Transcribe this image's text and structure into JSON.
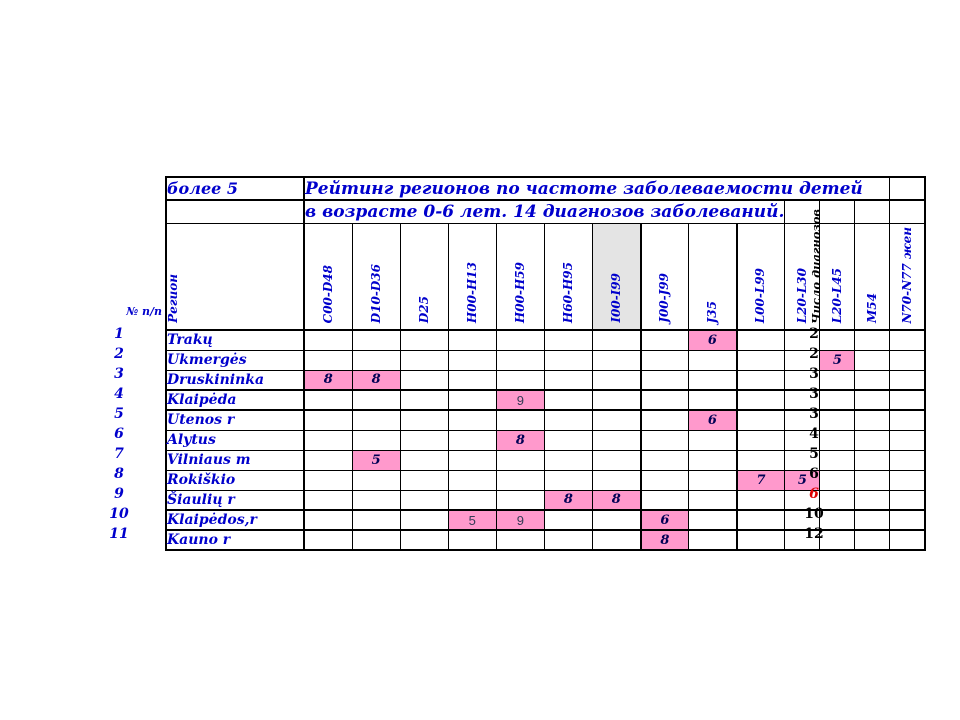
{
  "page": {
    "background": "#ffffff"
  },
  "colors": {
    "grid": "#000000",
    "blue_text": "#0000CC",
    "pink_fill": "#FF99CC",
    "gray_fill": "#E4E4E4",
    "red_text": "#DD0000",
    "value_text": "#000055"
  },
  "header": {
    "threshold_label": "более 5",
    "title_line1": "Рейтинг регионов по частоте заболеваемости детей",
    "title_line2": "в возрасте 0-6 лет. 14 диагнозов заболеваний.",
    "region_column_label": "Регион",
    "row_number_label": "№ п/п",
    "totals_label": "Число диагнозов",
    "code_columns": [
      "C00-D48",
      "D10-D36",
      "D25",
      "H00-H13",
      "H00-H59",
      "H60-H95",
      "I00-I99",
      "J00-J99",
      "J35",
      "L00-L99",
      "L20-L30",
      "L20-L45",
      "M54",
      "N70-N77 жен"
    ],
    "highlighted_code_column": "I00-I99"
  },
  "chart_data": {
    "type": "table",
    "title": "Рейтинг регионов по частоте заболеваемости детей в возрасте 0-6 лет. 14 диагнозов заболеваний.",
    "threshold_note": "более 5",
    "columns": [
      "№ п/п",
      "Регион",
      "C00-D48",
      "D10-D36",
      "D25",
      "H00-H13",
      "H00-H59",
      "H60-H95",
      "I00-I99",
      "J00-J99",
      "J35",
      "L00-L99",
      "L20-L30",
      "L20-L45",
      "M54",
      "N70-N77 жен",
      "Число диагнозов"
    ],
    "rows": [
      {
        "num": "1",
        "region": "Trakų",
        "total": "2",
        "cells": [
          {
            "code": "J35",
            "value": "6"
          }
        ]
      },
      {
        "num": "2",
        "region": "Ukmergės",
        "total": "2",
        "cells": [
          {
            "code": "L20-L45",
            "value": "5"
          }
        ]
      },
      {
        "num": "3",
        "region": "Druskininka",
        "total": "3",
        "cells": [
          {
            "code": "C00-D48",
            "value": "8"
          },
          {
            "code": "D10-D36",
            "value": "8"
          }
        ]
      },
      {
        "num": "4",
        "region": "Klaipėda",
        "total": "3",
        "cells": [
          {
            "code": "H00-H59",
            "value": "9",
            "plain": true
          }
        ]
      },
      {
        "num": "5",
        "region": "Utenos r",
        "total": "3",
        "cells": [
          {
            "code": "J35",
            "value": "6"
          }
        ]
      },
      {
        "num": "6",
        "region": "Alytus",
        "total": "4",
        "cells": [
          {
            "code": "H00-H59",
            "value": "8"
          }
        ]
      },
      {
        "num": "7",
        "region": "Vilniaus m",
        "total": "5",
        "cells": [
          {
            "code": "D10-D36",
            "value": "5"
          }
        ]
      },
      {
        "num": "8",
        "region": "Rokiškio",
        "total": "6",
        "cells": [
          {
            "code": "L00-L99",
            "value": "7"
          },
          {
            "code": "L20-L30",
            "value": "5"
          }
        ]
      },
      {
        "num": "9",
        "region": "Šiaulių r",
        "total": "6",
        "total_red": true,
        "cells": [
          {
            "code": "H60-H95",
            "value": "8"
          },
          {
            "code": "I00-I99",
            "value": "8"
          }
        ]
      },
      {
        "num": "10",
        "region": "Klaipėdos,r",
        "total": "10",
        "cells": [
          {
            "code": "H00-H13",
            "value": "5",
            "plain": true
          },
          {
            "code": "H00-H59",
            "value": "9",
            "plain": true
          },
          {
            "code": "J00-J99",
            "value": "6"
          }
        ]
      },
      {
        "num": "11",
        "region": "Kauno r",
        "total": "12",
        "cells": [
          {
            "code": "J00-J99",
            "value": "8"
          }
        ]
      }
    ]
  }
}
